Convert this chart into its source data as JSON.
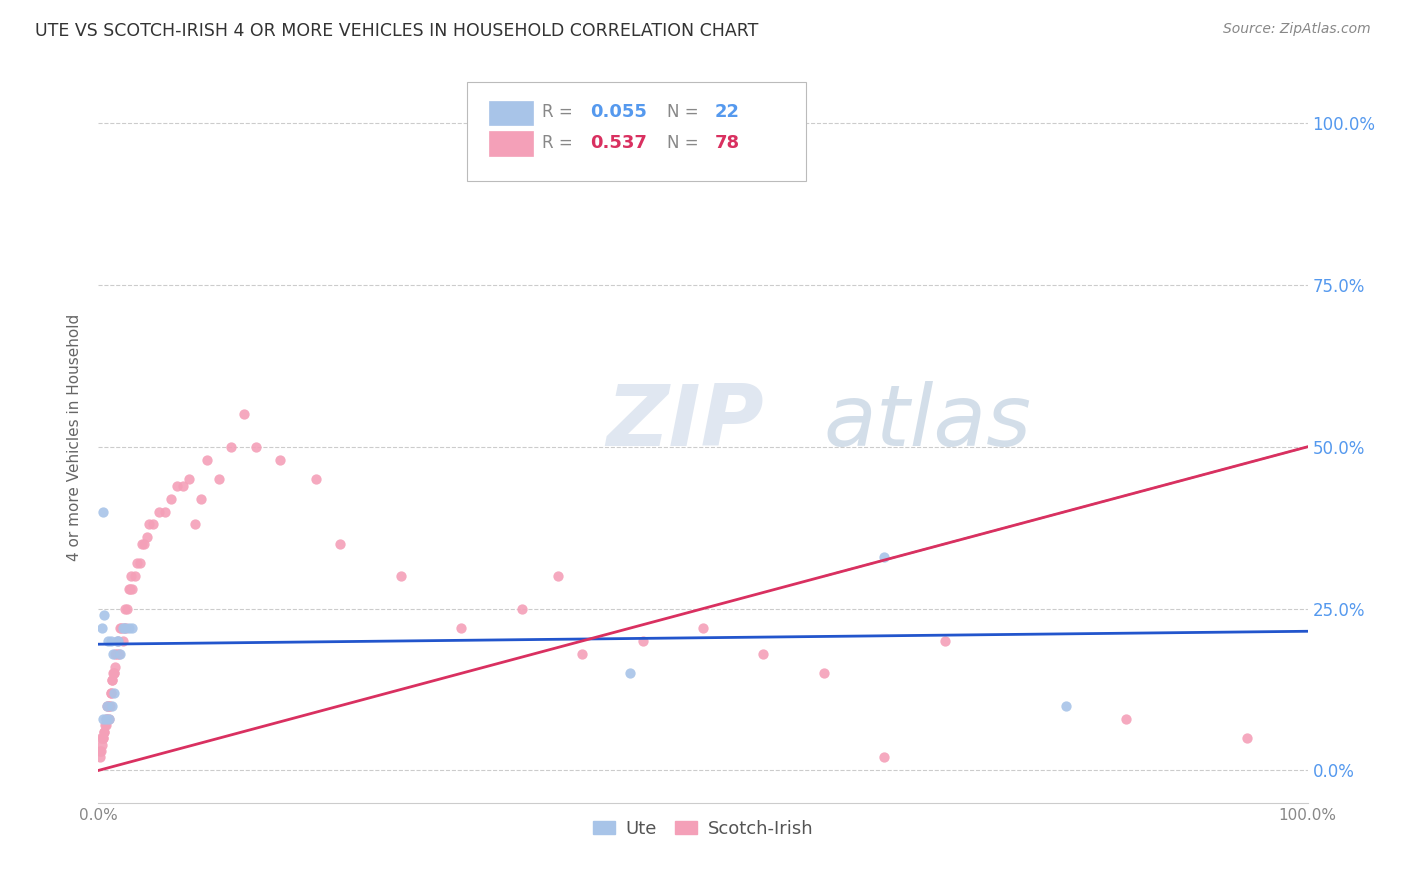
{
  "title": "UTE VS SCOTCH-IRISH 4 OR MORE VEHICLES IN HOUSEHOLD CORRELATION CHART",
  "source": "Source: ZipAtlas.com",
  "ylabel": "4 or more Vehicles in Household",
  "yticks": [
    "0.0%",
    "25.0%",
    "50.0%",
    "75.0%",
    "100.0%"
  ],
  "ytick_vals": [
    0,
    25,
    50,
    75,
    100
  ],
  "legend1_label": "Ute",
  "legend2_label": "Scotch-Irish",
  "r_ute": 0.055,
  "n_ute": 22,
  "r_scotch": 0.537,
  "n_scotch": 78,
  "ute_color": "#a8c4e8",
  "scotch_color": "#f4a0b8",
  "ute_line_color": "#2255cc",
  "scotch_line_color": "#d93060",
  "scatter_size": 55,
  "ute_x": [
    0.3,
    0.5,
    0.8,
    1.0,
    1.2,
    1.5,
    1.8,
    2.0,
    2.2,
    2.5,
    0.4,
    0.6,
    0.7,
    0.9,
    1.1,
    1.3,
    1.6,
    2.8,
    44.0,
    65.0,
    80.0,
    0.35
  ],
  "ute_y": [
    22,
    24,
    20,
    20,
    18,
    20,
    18,
    22,
    22,
    22,
    8,
    8,
    10,
    8,
    10,
    12,
    20,
    22,
    15,
    33,
    10,
    40
  ],
  "scotch_x": [
    0.1,
    0.15,
    0.2,
    0.25,
    0.3,
    0.35,
    0.4,
    0.45,
    0.5,
    0.55,
    0.6,
    0.65,
    0.7,
    0.75,
    0.8,
    0.85,
    0.9,
    0.95,
    1.0,
    1.05,
    1.1,
    1.15,
    1.2,
    1.25,
    1.3,
    1.35,
    1.4,
    1.5,
    1.6,
    1.7,
    1.8,
    1.9,
    2.0,
    2.1,
    2.2,
    2.3,
    2.4,
    2.5,
    2.6,
    2.7,
    2.8,
    3.0,
    3.2,
    3.4,
    3.6,
    3.8,
    4.0,
    4.2,
    4.5,
    5.0,
    5.5,
    6.0,
    6.5,
    7.0,
    7.5,
    8.0,
    8.5,
    9.0,
    10.0,
    11.0,
    12.0,
    13.0,
    15.0,
    18.0,
    20.0,
    25.0,
    30.0,
    35.0,
    38.0,
    40.0,
    45.0,
    50.0,
    55.0,
    60.0,
    65.0,
    70.0,
    85.0,
    95.0
  ],
  "scotch_y": [
    2,
    3,
    3,
    5,
    4,
    5,
    5,
    6,
    6,
    7,
    7,
    8,
    8,
    10,
    10,
    10,
    8,
    10,
    12,
    12,
    14,
    14,
    15,
    15,
    15,
    16,
    18,
    18,
    20,
    18,
    22,
    22,
    20,
    22,
    25,
    22,
    25,
    28,
    28,
    30,
    28,
    30,
    32,
    32,
    35,
    35,
    36,
    38,
    38,
    40,
    40,
    42,
    44,
    44,
    45,
    38,
    42,
    48,
    45,
    50,
    55,
    50,
    48,
    45,
    35,
    30,
    22,
    25,
    30,
    18,
    20,
    22,
    18,
    15,
    2,
    20,
    8,
    5
  ],
  "xlim": [
    0,
    100
  ],
  "ylim": [
    -5,
    108
  ],
  "ute_line_x0": 0,
  "ute_line_x1": 100,
  "ute_line_y0": 19.5,
  "ute_line_y1": 21.5,
  "scotch_line_x0": 0,
  "scotch_line_x1": 100,
  "scotch_line_y0": 0,
  "scotch_line_y1": 50,
  "dash_x0": 60,
  "dash_x1": 100,
  "watermark": "ZIPatlas",
  "background_color": "#ffffff",
  "grid_color": "#cccccc"
}
